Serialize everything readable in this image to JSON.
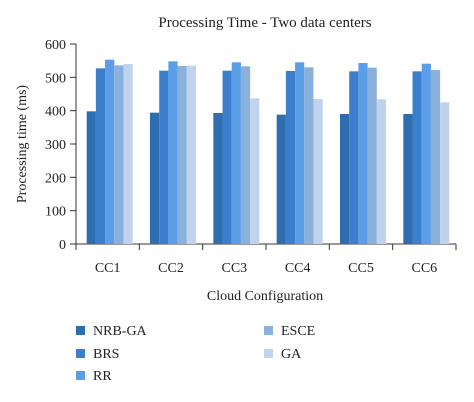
{
  "chart_data": {
    "type": "bar",
    "title": "Processing Time - Two data centers",
    "xlabel": "Cloud Configuration",
    "ylabel": "Processing time (ms)",
    "ylim": [
      0,
      600
    ],
    "yticks": [
      0,
      100,
      200,
      300,
      400,
      500,
      600
    ],
    "grid": false,
    "legend_position": "bottom",
    "categories": [
      "CC1",
      "CC2",
      "CC3",
      "CC4",
      "CC5",
      "CC6"
    ],
    "series": [
      {
        "name": "NRB-GA",
        "color": "#2e6db0",
        "values": [
          398,
          394,
          393,
          388,
          390,
          390
        ]
      },
      {
        "name": "BRS",
        "color": "#3b7fcc",
        "values": [
          527,
          520,
          520,
          519,
          518,
          518
        ]
      },
      {
        "name": "RR",
        "color": "#5b9ee8",
        "values": [
          553,
          548,
          545,
          545,
          543,
          541
        ]
      },
      {
        "name": "ESCE",
        "color": "#8ab0dc",
        "values": [
          536,
          534,
          533,
          530,
          529,
          522
        ]
      },
      {
        "name": "GA",
        "color": "#bfd2ee",
        "values": [
          540,
          535,
          437,
          435,
          434,
          425
        ]
      }
    ]
  }
}
